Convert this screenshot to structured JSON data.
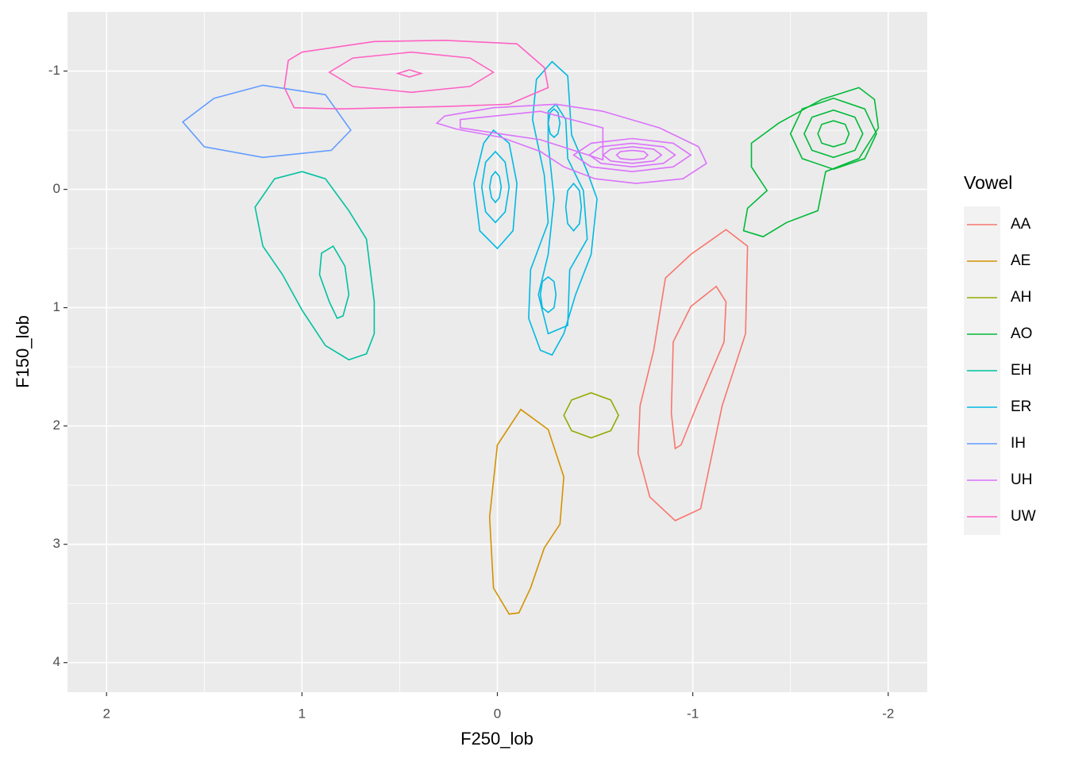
{
  "chart_data": {
    "type": "contour",
    "x_label": "F250_lob",
    "y_label": "F150_lob",
    "legend_title": "Vowel",
    "legend_position": "right",
    "xlim": [
      2.2,
      -2.2
    ],
    "ylim": [
      4.25,
      -1.5
    ],
    "xticks": [
      2,
      1,
      0,
      -1,
      -2
    ],
    "yticks": [
      -1,
      0,
      1,
      2,
      3,
      4
    ],
    "grid": true,
    "minor_grid": true,
    "series": [
      {
        "name": "AA",
        "color": "#F8766D",
        "contours": [
          {
            "x": [
              -1.17,
              -1.28,
              -1.27,
              -1.15,
              -1.04,
              -0.91,
              -0.78,
              -0.72,
              -0.73,
              -0.8,
              -0.86,
              -0.99
            ],
            "y": [
              0.34,
              0.48,
              1.22,
              1.83,
              2.7,
              2.8,
              2.6,
              2.23,
              1.83,
              1.36,
              0.75,
              0.55
            ]
          },
          {
            "x": [
              -1.12,
              -1.17,
              -1.16,
              -1.09,
              -1.02,
              -0.94,
              -0.91,
              -0.89,
              -0.9,
              -0.99
            ],
            "y": [
              0.82,
              0.95,
              1.29,
              1.56,
              1.83,
              2.16,
              2.19,
              1.89,
              1.29,
              0.99
            ]
          }
        ]
      },
      {
        "name": "AE",
        "color": "#D39200",
        "contours": [
          {
            "x": [
              -0.12,
              -0.26,
              -0.34,
              -0.32,
              -0.24,
              -0.17,
              -0.11,
              -0.06,
              0.02,
              0.04,
              0.0
            ],
            "y": [
              1.86,
              2.03,
              2.43,
              2.83,
              3.03,
              3.37,
              3.58,
              3.59,
              3.37,
              2.77,
              2.16
            ]
          }
        ]
      },
      {
        "name": "AH",
        "color": "#93AA00",
        "contours": [
          {
            "x": [
              -0.48,
              -0.58,
              -0.62,
              -0.58,
              -0.48,
              -0.38,
              -0.34,
              -0.38
            ],
            "y": [
              1.72,
              1.78,
              1.91,
              2.04,
              2.1,
              2.04,
              1.91,
              1.78
            ]
          }
        ]
      },
      {
        "name": "AO",
        "color": "#00BA38",
        "contours": [
          {
            "x": [
              -1.66,
              -1.85,
              -1.93,
              -1.95,
              -1.85,
              -1.68,
              -1.64,
              -1.48,
              -1.36,
              -1.26,
              -1.28,
              -1.38,
              -1.3,
              -1.3,
              -1.44
            ],
            "y": [
              -0.76,
              -0.86,
              -0.76,
              -0.52,
              -0.26,
              -0.15,
              0.18,
              0.28,
              0.4,
              0.35,
              0.16,
              0.01,
              -0.19,
              -0.39,
              -0.56
            ]
          },
          {
            "x": [
              -1.5,
              -1.56,
              -1.72,
              -1.88,
              -1.94,
              -1.88,
              -1.72,
              -1.56
            ],
            "y": [
              -0.47,
              -0.26,
              -0.17,
              -0.26,
              -0.47,
              -0.68,
              -0.77,
              -0.68
            ]
          },
          {
            "x": [
              -1.57,
              -1.61,
              -1.72,
              -1.83,
              -1.87,
              -1.83,
              -1.72,
              -1.61
            ],
            "y": [
              -0.47,
              -0.33,
              -0.27,
              -0.33,
              -0.47,
              -0.61,
              -0.67,
              -0.61
            ]
          },
          {
            "x": [
              -1.64,
              -1.66,
              -1.72,
              -1.78,
              -1.8,
              -1.78,
              -1.72,
              -1.66
            ],
            "y": [
              -0.47,
              -0.39,
              -0.36,
              -0.39,
              -0.47,
              -0.55,
              -0.58,
              -0.55
            ]
          }
        ]
      },
      {
        "name": "EH",
        "color": "#00C19F",
        "contours": [
          {
            "x": [
              1.0,
              0.88,
              0.76,
              0.67,
              0.63,
              0.63,
              0.67,
              0.76,
              0.88,
              1.0,
              1.1,
              1.2,
              1.24,
              1.14
            ],
            "y": [
              -0.15,
              -0.09,
              0.18,
              0.42,
              0.95,
              1.22,
              1.39,
              1.44,
              1.32,
              1.02,
              0.72,
              0.48,
              0.15,
              -0.09
            ]
          },
          {
            "x": [
              0.84,
              0.78,
              0.76,
              0.79,
              0.82,
              0.86,
              0.91,
              0.9
            ],
            "y": [
              0.48,
              0.65,
              0.89,
              1.07,
              1.09,
              0.95,
              0.72,
              0.54
            ]
          }
        ]
      },
      {
        "name": "ER",
        "color": "#00B9E3",
        "contours": [
          {
            "x": [
              0.02,
              -0.06,
              -0.1,
              -0.08,
              0.0,
              0.09,
              0.12,
              0.07
            ],
            "y": [
              -0.5,
              -0.39,
              -0.05,
              0.35,
              0.5,
              0.35,
              -0.05,
              -0.39
            ]
          },
          {
            "x": [
              0.08,
              0.06,
              0.01,
              -0.04,
              -0.06,
              -0.04,
              0.01,
              0.06
            ],
            "y": [
              -0.02,
              -0.23,
              -0.32,
              -0.23,
              -0.02,
              0.19,
              0.28,
              0.19
            ]
          },
          {
            "x": [
              0.04,
              0.03,
              0.01,
              -0.01,
              -0.02,
              -0.01,
              0.01,
              0.03
            ],
            "y": [
              -0.02,
              -0.11,
              -0.15,
              -0.11,
              -0.02,
              0.07,
              0.11,
              0.07
            ]
          },
          {
            "x": [
              -0.28,
              -0.36,
              -0.38,
              -0.46,
              -0.51,
              -0.48,
              -0.4,
              -0.34,
              -0.28,
              -0.22,
              -0.16,
              -0.17,
              -0.26,
              -0.24,
              -0.18,
              -0.2
            ],
            "y": [
              -1.08,
              -0.96,
              -0.46,
              -0.15,
              0.08,
              0.55,
              0.89,
              1.22,
              1.4,
              1.36,
              1.09,
              0.68,
              0.28,
              -0.12,
              -0.59,
              -0.93
            ]
          },
          {
            "x": [
              -0.3,
              -0.35,
              -0.36,
              -0.44,
              -0.46,
              -0.37,
              -0.36,
              -0.26,
              -0.21,
              -0.26,
              -0.29,
              -0.26,
              -0.26
            ],
            "y": [
              -0.72,
              -0.59,
              -0.26,
              0.01,
              0.42,
              0.68,
              1.15,
              1.22,
              0.89,
              0.55,
              0.08,
              -0.39,
              -0.66
            ]
          },
          {
            "x": [
              -0.35,
              -0.36,
              -0.39,
              -0.42,
              -0.43,
              -0.42,
              -0.39,
              -0.36
            ],
            "y": [
              0.15,
              0.01,
              -0.05,
              0.01,
              0.15,
              0.29,
              0.35,
              0.29
            ]
          },
          {
            "x": [
              -0.22,
              -0.23,
              -0.26,
              -0.29,
              -0.3,
              -0.29,
              -0.26,
              -0.23
            ],
            "y": [
              0.89,
              0.78,
              0.74,
              0.78,
              0.89,
              1.0,
              1.04,
              1.0
            ]
          },
          {
            "x": [
              -0.26,
              -0.27,
              -0.29,
              -0.31,
              -0.32,
              -0.31,
              -0.29,
              -0.27
            ],
            "y": [
              -0.56,
              -0.47,
              -0.44,
              -0.47,
              -0.56,
              -0.65,
              -0.68,
              -0.65
            ]
          }
        ]
      },
      {
        "name": "IH",
        "color": "#619CFF",
        "contours": [
          {
            "x": [
              0.75,
              0.85,
              1.2,
              1.5,
              1.61,
              1.45,
              1.2,
              0.88
            ],
            "y": [
              -0.5,
              -0.33,
              -0.27,
              -0.36,
              -0.57,
              -0.77,
              -0.88,
              -0.8
            ]
          }
        ]
      },
      {
        "name": "UH",
        "color": "#DB72FB",
        "contours": [
          {
            "x": [
              0.27,
              0.02,
              -0.3,
              -0.54,
              -0.83,
              -1.03,
              -1.07,
              -0.95,
              -0.71,
              -0.5,
              -0.34,
              -0.22,
              -0.02,
              0.21,
              0.31
            ],
            "y": [
              -0.62,
              -0.69,
              -0.72,
              -0.66,
              -0.52,
              -0.36,
              -0.22,
              -0.09,
              -0.05,
              -0.09,
              -0.19,
              -0.32,
              -0.44,
              -0.51,
              -0.56
            ]
          },
          {
            "x": [
              0.19,
              -0.22,
              -0.54,
              -0.54,
              -0.22,
              0.19
            ],
            "y": [
              -0.59,
              -0.66,
              -0.52,
              -0.25,
              -0.42,
              -0.52
            ]
          },
          {
            "x": [
              -0.39,
              -0.48,
              -0.69,
              -0.9,
              -0.99,
              -0.9,
              -0.69,
              -0.48
            ],
            "y": [
              -0.29,
              -0.19,
              -0.15,
              -0.19,
              -0.29,
              -0.39,
              -0.43,
              -0.39
            ]
          },
          {
            "x": [
              -0.47,
              -0.53,
              -0.69,
              -0.85,
              -0.91,
              -0.85,
              -0.69,
              -0.53
            ],
            "y": [
              -0.29,
              -0.22,
              -0.19,
              -0.22,
              -0.29,
              -0.36,
              -0.39,
              -0.36
            ]
          },
          {
            "x": [
              -0.54,
              -0.58,
              -0.69,
              -0.8,
              -0.84,
              -0.8,
              -0.69,
              -0.58
            ],
            "y": [
              -0.29,
              -0.24,
              -0.22,
              -0.24,
              -0.29,
              -0.34,
              -0.36,
              -0.34
            ]
          },
          {
            "x": [
              -0.61,
              -0.63,
              -0.69,
              -0.75,
              -0.77,
              -0.75,
              -0.69,
              -0.63
            ],
            "y": [
              -0.29,
              -0.26,
              -0.25,
              -0.26,
              -0.29,
              -0.32,
              -0.33,
              -0.32
            ]
          }
        ]
      },
      {
        "name": "UW",
        "color": "#FF61C3",
        "contours": [
          {
            "x": [
              1.0,
              0.63,
              0.27,
              -0.1,
              -0.24,
              -0.26,
              -0.06,
              0.27,
              0.55,
              0.8,
              1.04,
              1.09,
              1.07
            ],
            "y": [
              -1.16,
              -1.25,
              -1.26,
              -1.23,
              -1.03,
              -0.86,
              -0.72,
              -0.7,
              -0.69,
              -0.68,
              -0.69,
              -0.86,
              -1.09
            ]
          },
          {
            "x": [
              0.02,
              0.14,
              0.44,
              0.74,
              0.86,
              0.74,
              0.44,
              0.14
            ],
            "y": [
              -0.99,
              -0.87,
              -0.82,
              -0.87,
              -0.99,
              -1.11,
              -1.16,
              -1.11
            ]
          },
          {
            "x": [
              0.39,
              0.45,
              0.51,
              0.45
            ],
            "y": [
              -0.98,
              -0.95,
              -0.98,
              -1.01
            ]
          }
        ]
      }
    ]
  }
}
